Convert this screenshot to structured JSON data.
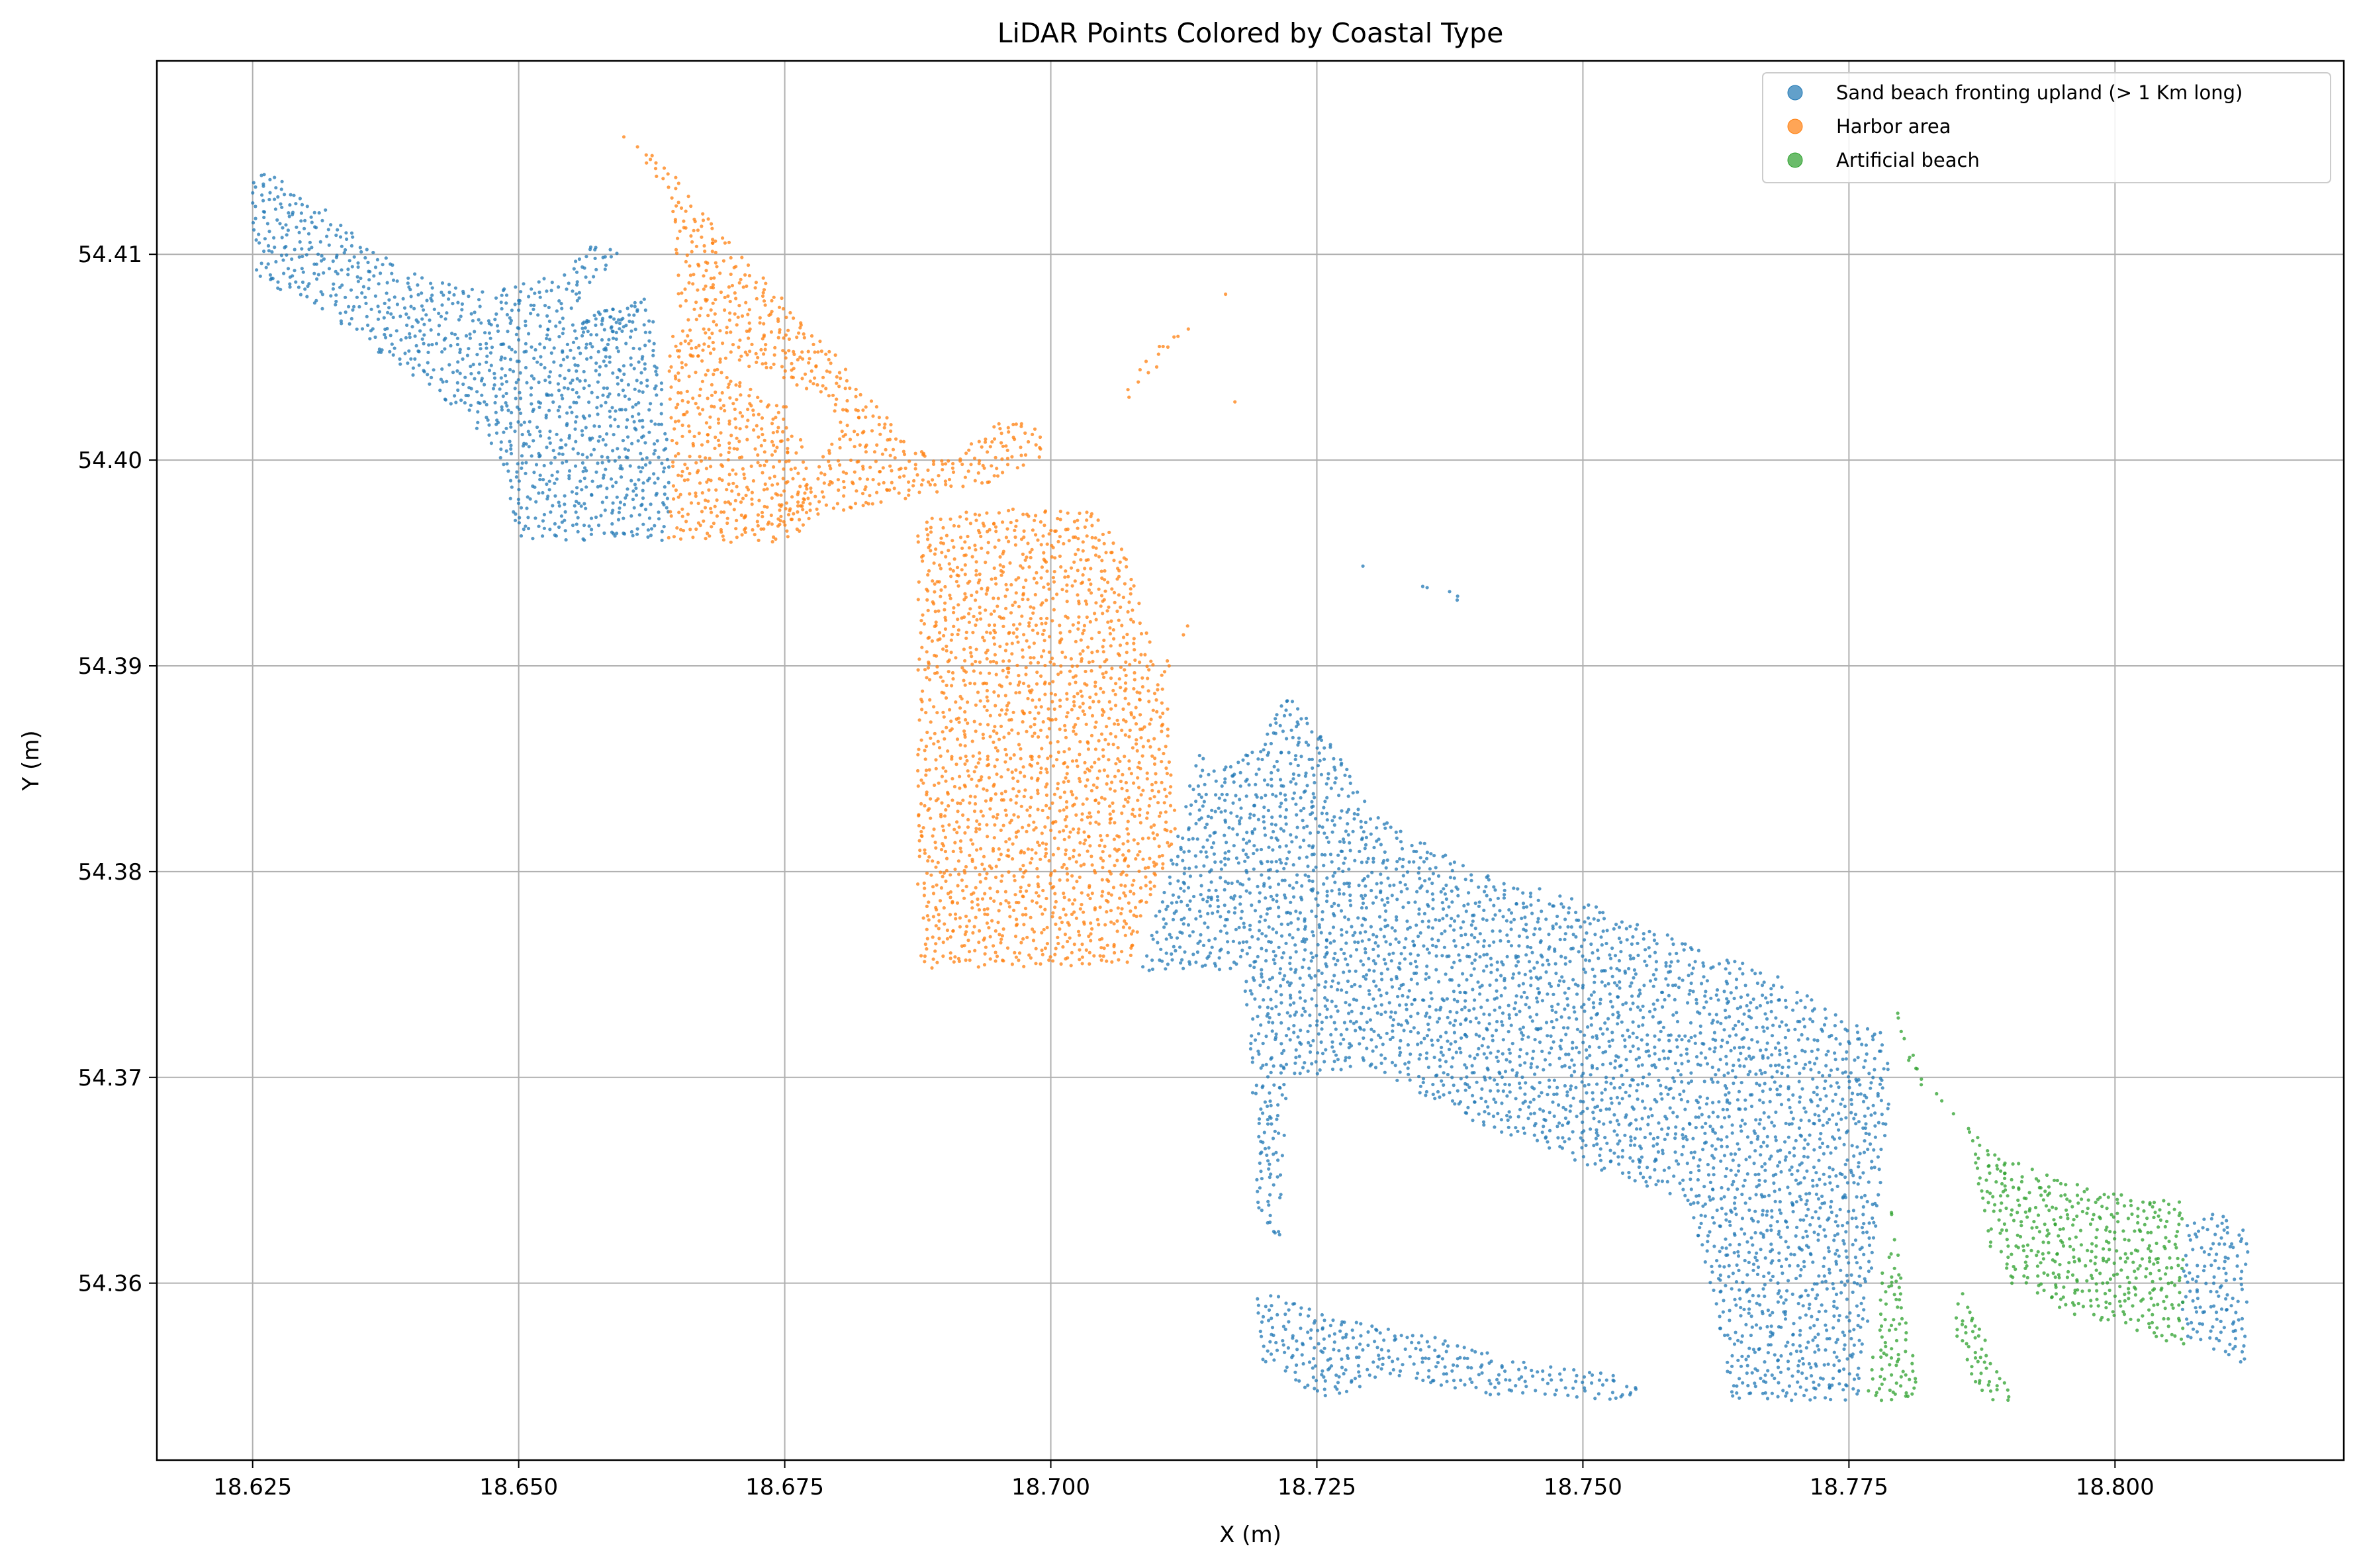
{
  "chart_data": {
    "type": "scatter",
    "title": "LiDAR Points Colored by Coastal Type",
    "xlabel": "X (m)",
    "ylabel": "Y (m)",
    "xlim": [
      18.616,
      18.8215
    ],
    "ylim": [
      54.3514,
      54.4194
    ],
    "xticks": [
      18.625,
      18.65,
      18.675,
      18.7,
      18.725,
      18.75,
      18.775,
      18.8
    ],
    "xtick_labels": [
      "18.625",
      "18.650",
      "18.675",
      "18.700",
      "18.725",
      "18.750",
      "18.775",
      "18.800"
    ],
    "yticks": [
      54.36,
      54.37,
      54.38,
      54.39,
      54.4,
      54.41
    ],
    "ytick_labels": [
      "54.36",
      "54.37",
      "54.38",
      "54.39",
      "54.40",
      "54.41"
    ],
    "grid": true,
    "legend_position": "upper-right",
    "series": [
      {
        "name": "Sand beach fronting upland (> 1 Km long)",
        "color": "#1f77b4",
        "regions": [
          [
            [
              18.625,
              54.4143
            ],
            [
              18.6305,
              54.4128
            ],
            [
              18.6355,
              54.4105
            ],
            [
              18.6415,
              54.4088
            ],
            [
              18.6475,
              54.4082
            ],
            [
              18.6538,
              54.409
            ],
            [
              18.6575,
              54.4107
            ],
            [
              18.6595,
              54.41
            ],
            [
              18.6565,
              54.4083
            ],
            [
              18.655,
              54.4068
            ],
            [
              18.6625,
              54.408
            ],
            [
              18.6643,
              54.4
            ],
            [
              18.664,
              54.396
            ],
            [
              18.65,
              54.396
            ],
            [
              18.6482,
              54.4
            ],
            [
              18.645,
              54.4022
            ],
            [
              18.638,
              54.4048
            ],
            [
              18.631,
              54.4075
            ],
            [
              18.625,
              54.4088
            ]
          ],
          [
            [
              18.655,
              54.4068
            ],
            [
              18.663,
              54.408
            ],
            [
              18.6575,
              54.405
            ]
          ],
          [
            [
              18.7085,
              54.3752
            ],
            [
              18.718,
              54.3752
            ],
            [
              18.719,
              54.369
            ],
            [
              18.7195,
              54.363
            ],
            [
              18.7215,
              54.362
            ],
            [
              18.7225,
              54.37
            ],
            [
              18.73,
              54.3705
            ],
            [
              18.74,
              54.3678
            ],
            [
              18.75,
              54.3658
            ],
            [
              18.76,
              54.364
            ],
            [
              18.7628,
              54.358
            ],
            [
              18.7638,
              54.3543
            ],
            [
              18.776,
              54.3543
            ],
            [
              18.777,
              54.359
            ],
            [
              18.778,
              54.365
            ],
            [
              18.779,
              54.37
            ],
            [
              18.778,
              54.3722
            ],
            [
              18.774,
              54.373
            ],
            [
              18.768,
              54.375
            ],
            [
              18.76,
              54.3765
            ],
            [
              18.75,
              54.3786
            ],
            [
              18.74,
              54.38
            ],
            [
              18.73,
              54.383
            ],
            [
              18.7275,
              54.3855
            ],
            [
              18.725,
              54.387
            ],
            [
              18.722,
              54.3888
            ],
            [
              18.7195,
              54.386
            ],
            [
              18.716,
              54.385
            ],
            [
              18.7138,
              54.386
            ],
            [
              18.712,
              54.382
            ]
          ],
          [
            [
              18.719,
              54.359
            ],
            [
              18.72,
              54.356
            ],
            [
              18.726,
              54.3543
            ],
            [
              18.732,
              54.3556
            ],
            [
              18.74,
              54.3546
            ],
            [
              18.75,
              54.3543
            ],
            [
              18.756,
              54.3543
            ],
            [
              18.754,
              54.3555
            ],
            [
              18.744,
              54.3562
            ],
            [
              18.736,
              54.3575
            ],
            [
              18.726,
              54.3585
            ],
            [
              18.72,
              54.3597
            ]
          ],
          [
            [
              18.8068,
              54.363
            ],
            [
              18.81,
              54.3635
            ],
            [
              18.8125,
              54.3625
            ],
            [
              18.8125,
              54.356
            ],
            [
              18.81,
              54.3565
            ],
            [
              18.806,
              54.3575
            ]
          ],
          [
            [
              18.728,
              54.3952
            ],
            [
              18.739,
              54.393
            ],
            [
              18.7385,
              54.3935
            ],
            [
              18.729,
              54.3948
            ]
          ]
        ]
      },
      {
        "name": "Harbor area",
        "color": "#ff7f0e",
        "regions": [
          [
            [
              18.659,
              54.4164
            ],
            [
              18.6645,
              54.414
            ],
            [
              18.669,
              54.411
            ],
            [
              18.675,
              54.4078
            ],
            [
              18.68,
              54.405
            ],
            [
              18.686,
              54.4012
            ],
            [
              18.689,
              54.4
            ],
            [
              18.6958,
              54.402
            ],
            [
              18.699,
              54.4015
            ],
            [
              18.7005,
              54.4005
            ],
            [
              18.695,
              54.399
            ],
            [
              18.6898,
              54.3985
            ],
            [
              18.678,
              54.3972
            ],
            [
              18.673,
              54.3966
            ],
            [
              18.671,
              54.3962
            ],
            [
              18.6775,
              54.3992
            ],
            [
              18.68,
              54.4015
            ],
            [
              18.679,
              54.403
            ],
            [
              18.672,
              54.4045
            ],
            [
              18.666,
              54.405
            ],
            [
              18.665,
              54.4075
            ],
            [
              18.665,
              54.4095
            ],
            [
              18.664,
              54.413
            ],
            [
              18.66,
              54.4155
            ]
          ],
          [
            [
              18.664,
              54.407
            ],
            [
              18.67,
              54.404
            ],
            [
              18.675,
              54.4028
            ],
            [
              18.6765,
              54.401
            ],
            [
              18.678,
              54.398
            ],
            [
              18.676,
              54.396
            ],
            [
              18.664,
              54.396
            ],
            [
              18.6643,
              54.4
            ]
          ],
          [
            [
              18.6875,
              54.3972
            ],
            [
              18.697,
              54.3978
            ],
            [
              18.704,
              54.3975
            ],
            [
              18.707,
              54.3955
            ],
            [
              18.711,
              54.388
            ],
            [
              18.712,
              54.382
            ],
            [
              18.709,
              54.378
            ],
            [
              18.707,
              54.3752
            ],
            [
              18.6875,
              54.3752
            ]
          ],
          [
            [
              18.7065,
              54.4025
            ],
            [
              18.716,
              54.408
            ],
            [
              18.718,
              54.4085
            ],
            [
              18.71,
              54.4055
            ],
            [
              18.707,
              54.4035
            ]
          ],
          [
            [
              18.716,
              54.4032
            ],
            [
              18.7185,
              54.402
            ],
            [
              18.7175,
              54.403
            ]
          ],
          [
            [
              18.7095,
              54.389
            ],
            [
              18.714,
              54.3932
            ],
            [
              18.713,
              54.392
            ],
            [
              18.71,
              54.3885
            ]
          ]
        ]
      },
      {
        "name": "Artificial beach",
        "color": "#2ca02c",
        "regions": [
          [
            [
              18.779,
              54.364
            ],
            [
              18.78,
              54.36
            ],
            [
              18.7818,
              54.3543
            ],
            [
              18.7766,
              54.3543
            ],
            [
              18.7775,
              54.358
            ]
          ],
          [
            [
              18.779,
              54.374
            ],
            [
              18.781,
              54.37
            ],
            [
              18.783,
              54.369
            ],
            [
              18.79,
              54.366
            ],
            [
              18.798,
              54.3645
            ],
            [
              18.8065,
              54.364
            ],
            [
              18.8065,
              54.357
            ],
            [
              18.798,
              54.358
            ],
            [
              18.79,
              54.36
            ],
            [
              18.788,
              54.362
            ],
            [
              18.786,
              54.368
            ],
            [
              18.782,
              54.37
            ]
          ],
          [
            [
              18.7855,
              54.36
            ],
            [
              18.7905,
              54.3543
            ],
            [
              18.787,
              54.3543
            ],
            [
              18.7848,
              54.358
            ]
          ]
        ]
      }
    ]
  }
}
